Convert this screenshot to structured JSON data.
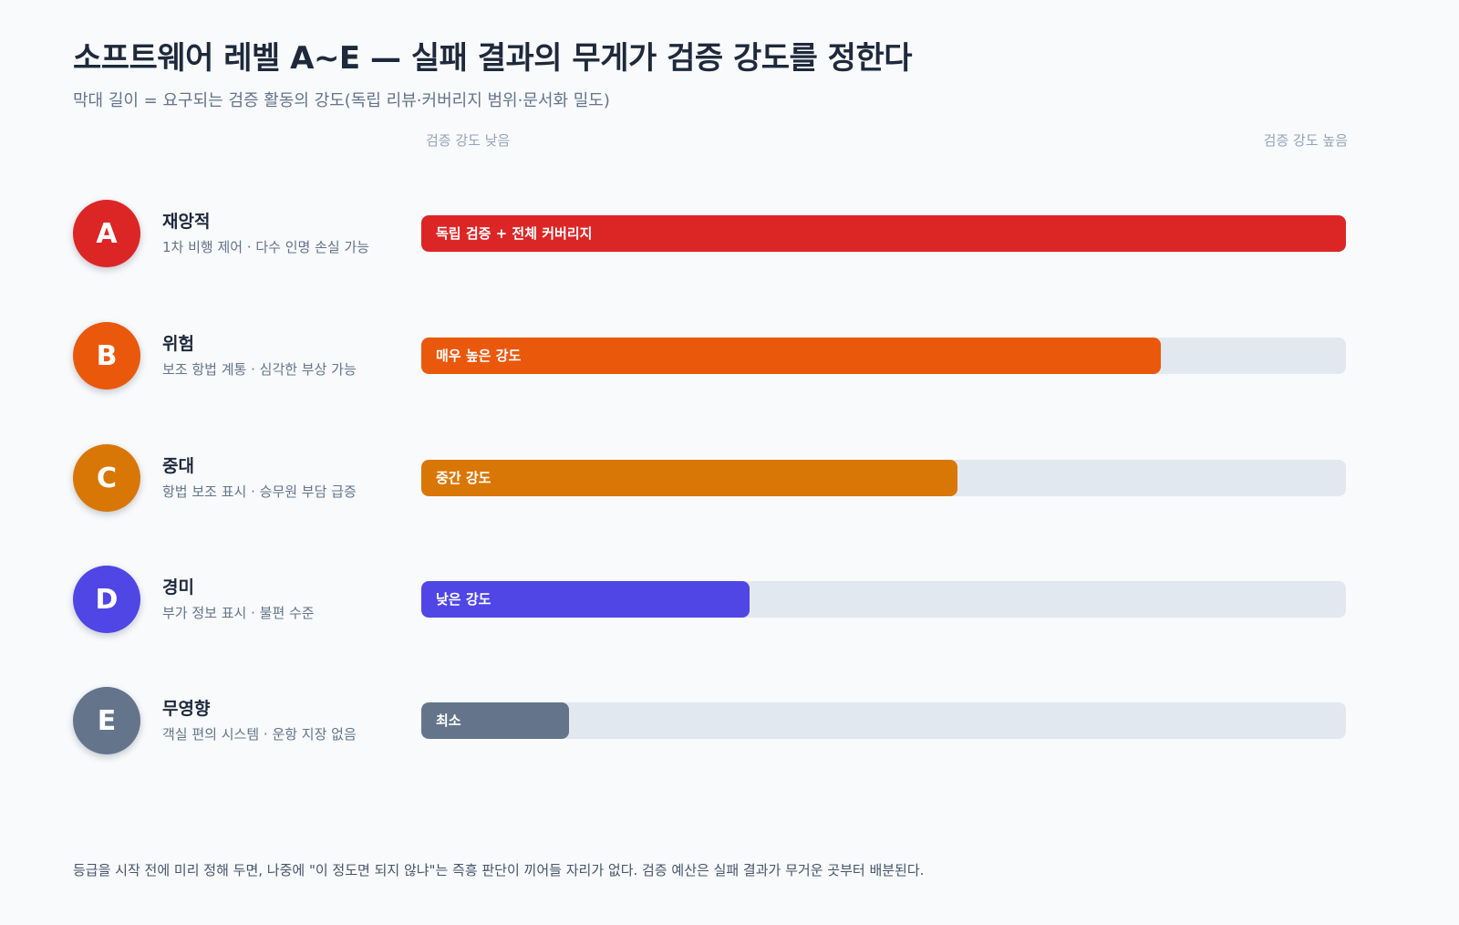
{
  "title": "소프트웨어 레벨 A~E — 실패 결과의 무게가 검증 강도를 정한다",
  "subtitle": "막대 길이 = 요구되는 검증 활동의 강도(독립 리뷰·커버리지 범위·문서화 밀도)",
  "axis": {
    "low_label": "검증 강도 낮음",
    "high_label": "검증 강도 높음"
  },
  "chart_data": {
    "type": "bar",
    "orientation": "horizontal",
    "categories": [
      "A",
      "B",
      "C",
      "D",
      "E"
    ],
    "values": [
      100,
      80,
      58,
      35.5,
      16
    ],
    "value_unit": "relative verification intensity (% of full bar)",
    "xlim": [
      0,
      100
    ],
    "grid": false,
    "rows": [
      {
        "letter": "A",
        "name": "재앙적",
        "desc": "1차 비행 제어 · 다수 인명 손실 가능",
        "bar_label": "독립 검증 + 전체 커버리지",
        "value": 100,
        "color": "#dc2626"
      },
      {
        "letter": "B",
        "name": "위험",
        "desc": "보조 항법 계통 · 심각한 부상 가능",
        "bar_label": "매우 높은 강도",
        "value": 80,
        "color": "#ea580c"
      },
      {
        "letter": "C",
        "name": "중대",
        "desc": "항법 보조 표시 · 승무원 부담 급증",
        "bar_label": "중간 강도",
        "value": 58,
        "color": "#d97706"
      },
      {
        "letter": "D",
        "name": "경미",
        "desc": "부가 정보 표시 · 불편 수준",
        "bar_label": "낮은 강도",
        "value": 35.5,
        "color": "#4f46e5"
      },
      {
        "letter": "E",
        "name": "무영향",
        "desc": "객실 편의 시스템 · 운항 지장 없음",
        "bar_label": "최소",
        "value": 16,
        "color": "#64748b"
      }
    ]
  },
  "colors": {
    "track": "#e2e8f0",
    "background": "#f8fafc"
  },
  "footnote": "등급을 시작 전에 미리 정해 두면, 나중에 \"이 정도면 되지 않냐\"는 즉흥 판단이 끼어들 자리가 없다. 검증 예산은 실패 결과가 무거운 곳부터 배분된다."
}
